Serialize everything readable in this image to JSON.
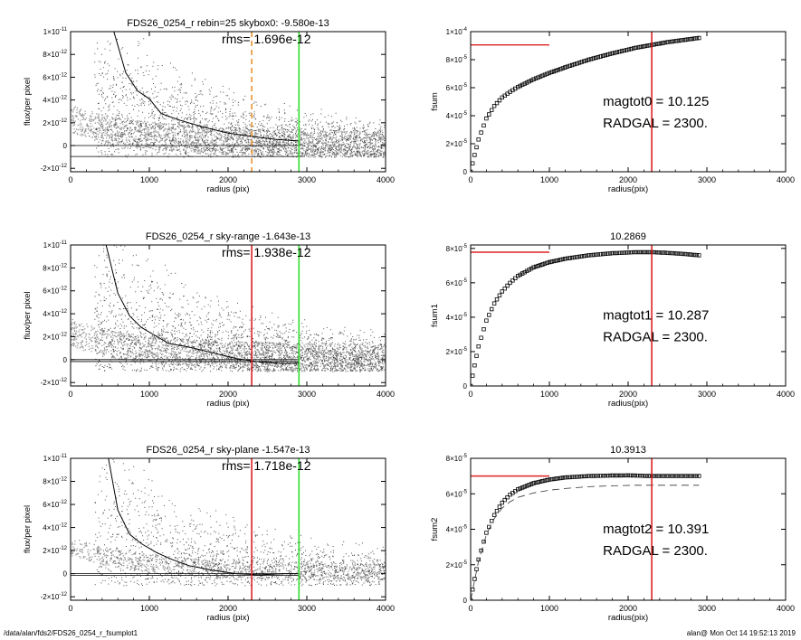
{
  "footer": {
    "path": "/data/alan/fds2/FDS26_0254_r_fsumplot1",
    "stamp": "alan@  Mon Oct 14 19:52:13 2019"
  },
  "colors": {
    "red": "#dd2222",
    "green": "#33dd33",
    "orange": "#e8932f",
    "dark_points": "#222222",
    "light_points": "#9a9a9a"
  },
  "chart_data": [
    {
      "id": "profile1",
      "type": "scatter",
      "title": "FDS26_0254_r rebin=25    skybox0: -9.580e-13",
      "annotation": "rms= 1.696e-12",
      "xlabel": "radius (pix)",
      "ylabel": "flux/per pixel",
      "xlim": [
        0,
        4000
      ],
      "ylim": [
        -2.3e-12,
        1e-11
      ],
      "xticks": [
        0,
        1000,
        2000,
        3000,
        4000
      ],
      "yticks": [
        {
          "v": 1e-11,
          "m": "1×10",
          "e": "-11"
        },
        {
          "v": 8e-12,
          "m": "8×10",
          "e": "-12"
        },
        {
          "v": 6e-12,
          "m": "6×10",
          "e": "-12"
        },
        {
          "v": 4e-12,
          "m": "4×10",
          "e": "-12"
        },
        {
          "v": 2e-12,
          "m": "2×10",
          "e": "-12"
        },
        {
          "v": 0,
          "m": "0",
          "e": ""
        },
        {
          "v": -2e-12,
          "m": "-2×10",
          "e": "-12"
        }
      ],
      "profile_line": {
        "x": [
          550,
          700,
          850,
          1000,
          1150,
          1400,
          1700,
          2000,
          2300,
          2600,
          2900
        ],
        "y": [
          1e-11,
          6.4e-12,
          4.8e-12,
          4.1e-12,
          2.8e-12,
          2.2e-12,
          1.6e-12,
          1.1e-12,
          8e-13,
          5.5e-13,
          4e-13
        ]
      },
      "hlines": [
        {
          "y": 0,
          "x": [
            0,
            2900
          ]
        },
        {
          "y": -9.58e-13,
          "x": [
            0,
            2900
          ]
        }
      ],
      "vlines": [
        {
          "x": 2300,
          "color": "orange",
          "dashed": true
        },
        {
          "x": 2900,
          "color": "green",
          "dashed": false
        }
      ],
      "scatter_light": true,
      "scatter_dense": true
    },
    {
      "id": "fsum0",
      "type": "line",
      "title": "",
      "annotation_lines": [
        "magtot0 =  10.125",
        "RADGAL =   2300."
      ],
      "xlabel": "radius(pix)",
      "ylabel": "fsum",
      "xlim": [
        0,
        4000
      ],
      "ylim": [
        0,
        0.0001
      ],
      "xticks": [
        0,
        1000,
        2000,
        3000,
        4000
      ],
      "yticks": [
        {
          "v": 0.0001,
          "m": "1×10",
          "e": "-4"
        },
        {
          "v": 8e-05,
          "m": "8×10",
          "e": "-5"
        },
        {
          "v": 6e-05,
          "m": "6×10",
          "e": "-5"
        },
        {
          "v": 4e-05,
          "m": "4×10",
          "e": "-5"
        },
        {
          "v": 2e-05,
          "m": "2×10",
          "e": "-5"
        },
        {
          "v": 0,
          "m": "0",
          "e": ""
        }
      ],
      "curve": {
        "x": [
          0,
          50,
          100,
          200,
          300,
          400,
          500,
          600,
          800,
          1000,
          1200,
          1500,
          1800,
          2100,
          2300,
          2500,
          2700,
          2900
        ],
        "y": [
          0,
          1.2e-05,
          2.3e-05,
          3.8e-05,
          4.7e-05,
          5.3e-05,
          5.7e-05,
          6.05e-05,
          6.6e-05,
          7.05e-05,
          7.45e-05,
          8e-05,
          8.45e-05,
          8.85e-05,
          9.05e-05,
          9.25e-05,
          9.4e-05,
          9.55e-05
        ]
      },
      "hline": {
        "y": 9.05e-05,
        "x": [
          0,
          1000
        ]
      },
      "vline": {
        "x": 2300
      },
      "dashed_curve": null
    },
    {
      "id": "profile2",
      "type": "scatter",
      "title": "FDS26_0254_r sky-range -1.643e-13",
      "annotation": "rms= 1.938e-12",
      "xlabel": "radius (pix)",
      "ylabel": "flux/per pixel",
      "xlim": [
        0,
        4000
      ],
      "ylim": [
        -2.3e-12,
        1e-11
      ],
      "xticks": [
        0,
        1000,
        2000,
        3000,
        4000
      ],
      "yticks": [
        {
          "v": 1e-11,
          "m": "1×10",
          "e": "-11"
        },
        {
          "v": 8e-12,
          "m": "8×10",
          "e": "-12"
        },
        {
          "v": 6e-12,
          "m": "6×10",
          "e": "-12"
        },
        {
          "v": 4e-12,
          "m": "4×10",
          "e": "-12"
        },
        {
          "v": 2e-12,
          "m": "2×10",
          "e": "-12"
        },
        {
          "v": 0,
          "m": "0",
          "e": ""
        },
        {
          "v": -2e-12,
          "m": "-2×10",
          "e": "-12"
        }
      ],
      "profile_line": {
        "x": [
          450,
          600,
          750,
          900,
          1100,
          1250,
          1500,
          1800,
          2100,
          2400,
          2700,
          2900
        ],
        "y": [
          1e-11,
          5.8e-12,
          3.8e-12,
          2.8e-12,
          2e-12,
          1.4e-12,
          1.1e-12,
          6e-13,
          1e-13,
          -2e-13,
          -3.5e-13,
          -3e-13
        ]
      },
      "hlines": [
        {
          "y": 0,
          "x": [
            0,
            2900
          ]
        },
        {
          "y": -1.643e-13,
          "x": [
            0,
            2900
          ]
        }
      ],
      "vlines": [
        {
          "x": 2300,
          "color": "red",
          "dashed": false
        },
        {
          "x": 2900,
          "color": "green",
          "dashed": false
        }
      ],
      "scatter_light": true,
      "scatter_dense": true
    },
    {
      "id": "fsum1",
      "type": "line",
      "title": "10.2869",
      "annotation_lines": [
        "magtot1 =  10.287",
        "RADGAL =   2300."
      ],
      "xlabel": "radius(pix)",
      "ylabel": "fsum1",
      "xlim": [
        0,
        4000
      ],
      "ylim": [
        0,
        8.2e-05
      ],
      "xticks": [
        0,
        1000,
        2000,
        3000,
        4000
      ],
      "yticks": [
        {
          "v": 8e-05,
          "m": "8×10",
          "e": "-5"
        },
        {
          "v": 6e-05,
          "m": "6×10",
          "e": "-5"
        },
        {
          "v": 4e-05,
          "m": "4×10",
          "e": "-5"
        },
        {
          "v": 2e-05,
          "m": "2×10",
          "e": "-5"
        },
        {
          "v": 0,
          "m": "0",
          "e": ""
        }
      ],
      "curve": {
        "x": [
          0,
          50,
          100,
          200,
          300,
          400,
          500,
          600,
          800,
          1000,
          1200,
          1500,
          1800,
          2100,
          2300,
          2500,
          2700,
          2900
        ],
        "y": [
          0,
          1.2e-05,
          2.3e-05,
          3.8e-05,
          4.8e-05,
          5.5e-05,
          6e-05,
          6.4e-05,
          6.9e-05,
          7.2e-05,
          7.4e-05,
          7.6e-05,
          7.72e-05,
          7.78e-05,
          7.78e-05,
          7.74e-05,
          7.68e-05,
          7.6e-05
        ]
      },
      "hline": {
        "y": 7.78e-05,
        "x": [
          0,
          1000
        ]
      },
      "vline": {
        "x": 2300
      },
      "dashed_curve": null
    },
    {
      "id": "profile3",
      "type": "scatter",
      "title": "FDS26_0254_r sky-plane -1.547e-13",
      "annotation": "rms= 1.718e-12",
      "xlabel": "radius (pix)",
      "ylabel": "flux/per pixel",
      "xlim": [
        0,
        4000
      ],
      "ylim": [
        -2.3e-12,
        1e-11
      ],
      "xticks": [
        0,
        1000,
        2000,
        3000,
        4000
      ],
      "yticks": [
        {
          "v": 1e-11,
          "m": "1×10",
          "e": "-11"
        },
        {
          "v": 8e-12,
          "m": "8×10",
          "e": "-12"
        },
        {
          "v": 6e-12,
          "m": "6×10",
          "e": "-12"
        },
        {
          "v": 4e-12,
          "m": "4×10",
          "e": "-12"
        },
        {
          "v": 2e-12,
          "m": "2×10",
          "e": "-12"
        },
        {
          "v": 0,
          "m": "0",
          "e": ""
        },
        {
          "v": -2e-12,
          "m": "-2×10",
          "e": "-12"
        }
      ],
      "profile_line": {
        "x": [
          480,
          600,
          750,
          900,
          1100,
          1300,
          1500,
          1800,
          2100,
          2400,
          2700,
          2900
        ],
        "y": [
          1e-11,
          5.5e-12,
          3.4e-12,
          2.6e-12,
          1.8e-12,
          1.2e-12,
          7e-13,
          3e-13,
          0,
          -1e-13,
          0,
          0
        ]
      },
      "hlines": [
        {
          "y": 0,
          "x": [
            0,
            2900
          ]
        },
        {
          "y": -1.547e-13,
          "x": [
            0,
            2900
          ]
        }
      ],
      "vlines": [
        {
          "x": 2300,
          "color": "red",
          "dashed": false
        },
        {
          "x": 2900,
          "color": "green",
          "dashed": false
        }
      ],
      "scatter_light": false,
      "scatter_dense": false
    },
    {
      "id": "fsum2",
      "type": "line",
      "title": "10.3913",
      "annotation_lines": [
        "magtot2 =  10.391",
        "RADGAL =   2300."
      ],
      "xlabel": "radius(pix)",
      "ylabel": "fsum2",
      "xlim": [
        0,
        4000
      ],
      "ylim": [
        0,
        8e-05
      ],
      "xticks": [
        0,
        1000,
        2000,
        3000,
        4000
      ],
      "yticks": [
        {
          "v": 8e-05,
          "m": "8×10",
          "e": "-5"
        },
        {
          "v": 6e-05,
          "m": "6×10",
          "e": "-5"
        },
        {
          "v": 4e-05,
          "m": "4×10",
          "e": "-5"
        },
        {
          "v": 2e-05,
          "m": "2×10",
          "e": "-5"
        },
        {
          "v": 0,
          "m": "0",
          "e": ""
        }
      ],
      "curve": {
        "x": [
          0,
          50,
          100,
          200,
          300,
          400,
          500,
          600,
          800,
          1000,
          1200,
          1500,
          1800,
          2000,
          2300,
          2500,
          2700,
          2900
        ],
        "y": [
          0,
          1.2e-05,
          2.3e-05,
          3.8e-05,
          4.8e-05,
          5.5e-05,
          5.95e-05,
          6.25e-05,
          6.6e-05,
          6.8e-05,
          6.92e-05,
          7e-05,
          7.03e-05,
          7.04e-05,
          7e-05,
          7e-05,
          7e-05,
          7e-05
        ]
      },
      "hline": {
        "y": 7e-05,
        "x": [
          0,
          1000
        ]
      },
      "vline": {
        "x": 2300
      },
      "dashed_curve": {
        "x": [
          0,
          100,
          200,
          300,
          400,
          500,
          600,
          800,
          1000,
          1200,
          1500,
          1800,
          2100,
          2400,
          2700,
          2900
        ],
        "y": [
          0,
          2.2e-05,
          3.7e-05,
          4.6e-05,
          5.2e-05,
          5.55e-05,
          5.8e-05,
          6.05e-05,
          6.2e-05,
          6.3e-05,
          6.4e-05,
          6.45e-05,
          6.48e-05,
          6.48e-05,
          6.48e-05,
          6.48e-05
        ]
      }
    }
  ]
}
